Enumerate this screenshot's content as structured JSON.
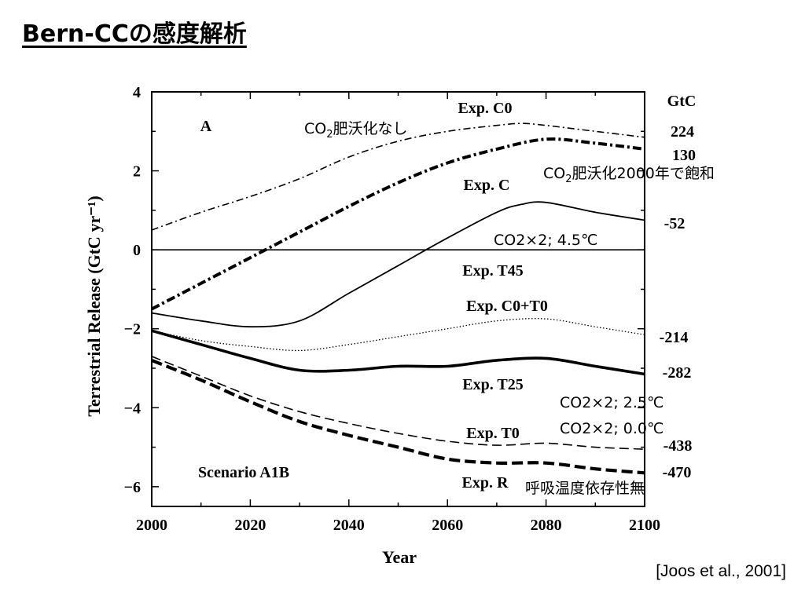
{
  "slide": {
    "title": "Bern-CCの感度解析",
    "citation": "[Joos et al., 2001]"
  },
  "chart_data": {
    "type": "line",
    "panel_label": "A",
    "scenario_label": "Scenario A1B",
    "xlabel": "Year",
    "ylabel": "Terrestrial Release (GtC yr⁻¹)",
    "xlim": [
      2000,
      2100
    ],
    "ylim": [
      -6.5,
      4
    ],
    "x_ticks": [
      2000,
      2020,
      2040,
      2060,
      2080,
      2100
    ],
    "y_ticks": [
      -6,
      -4,
      -2,
      0,
      2,
      4
    ],
    "y_tick_labels": [
      "−6",
      "−4",
      "−2",
      "0",
      "2",
      "4"
    ],
    "unit_label": "GtC",
    "grid": false,
    "zero_line": true,
    "series": [
      {
        "name": "Exp. C0",
        "style": "dashdot-thin",
        "total": "224",
        "x": [
          2000,
          2010,
          2020,
          2030,
          2040,
          2050,
          2060,
          2070,
          2075,
          2080,
          2090,
          2100
        ],
        "y": [
          0.5,
          0.95,
          1.35,
          1.8,
          2.35,
          2.75,
          3.0,
          3.15,
          3.2,
          3.15,
          3.0,
          2.85
        ]
      },
      {
        "name": "Exp. C",
        "style": "dashdot-thick",
        "total": "130",
        "x": [
          2000,
          2010,
          2020,
          2030,
          2040,
          2050,
          2060,
          2070,
          2080,
          2090,
          2100
        ],
        "y": [
          -1.5,
          -0.85,
          -0.2,
          0.45,
          1.1,
          1.7,
          2.2,
          2.55,
          2.8,
          2.7,
          2.55
        ]
      },
      {
        "name": "Exp. T45",
        "style": "solid-medium",
        "total": "-52",
        "x": [
          2000,
          2010,
          2020,
          2030,
          2040,
          2050,
          2060,
          2070,
          2075,
          2080,
          2090,
          2100
        ],
        "y": [
          -1.6,
          -1.8,
          -1.95,
          -1.8,
          -1.1,
          -0.4,
          0.3,
          0.95,
          1.15,
          1.2,
          0.95,
          0.75
        ]
      },
      {
        "name": "Exp. C0+T0",
        "style": "dotted-thin",
        "total": "-214",
        "x": [
          2000,
          2010,
          2020,
          2030,
          2040,
          2050,
          2060,
          2070,
          2080,
          2090,
          2100
        ],
        "y": [
          -2.05,
          -2.3,
          -2.45,
          -2.55,
          -2.4,
          -2.2,
          -2.0,
          -1.8,
          -1.75,
          -1.95,
          -2.15
        ]
      },
      {
        "name": "Exp. T25",
        "style": "solid-thick",
        "total": "-282",
        "x": [
          2000,
          2010,
          2020,
          2030,
          2040,
          2050,
          2060,
          2070,
          2080,
          2090,
          2100
        ],
        "y": [
          -2.05,
          -2.4,
          -2.75,
          -3.05,
          -3.05,
          -2.95,
          -2.95,
          -2.8,
          -2.75,
          -2.95,
          -3.15
        ]
      },
      {
        "name": "Exp. T0",
        "style": "dashed-thin",
        "total": "-438",
        "x": [
          2000,
          2010,
          2020,
          2030,
          2040,
          2050,
          2060,
          2070,
          2080,
          2090,
          2100
        ],
        "y": [
          -2.7,
          -3.2,
          -3.7,
          -4.1,
          -4.4,
          -4.65,
          -4.85,
          -4.95,
          -4.9,
          -5.0,
          -5.05
        ]
      },
      {
        "name": "Exp. R",
        "style": "dashed-thick",
        "total": "-470",
        "x": [
          2000,
          2010,
          2020,
          2030,
          2040,
          2050,
          2060,
          2070,
          2080,
          2090,
          2100
        ],
        "y": [
          -2.8,
          -3.3,
          -3.85,
          -4.35,
          -4.7,
          -5.0,
          -5.3,
          -5.4,
          -5.4,
          -5.55,
          -5.65
        ]
      }
    ],
    "jp_annotations": {
      "c0": [
        "CO",
        "2",
        "肥沃化なし"
      ],
      "c": [
        "CO",
        "2",
        "肥沃化2000年で飽和"
      ],
      "t45": "CO2×2; 4.5℃",
      "t25": "CO2×2; 2.5℃",
      "t0": "CO2×2; 0.0℃",
      "r": "呼吸温度依存性無"
    }
  }
}
